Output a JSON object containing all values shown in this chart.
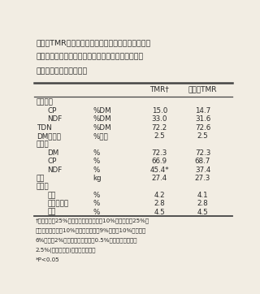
{
  "title_line1": "表３　TMR中のイネ科乾草を梢頭部サイレージで置",
  "title_line2": "き換えた場合の化学組成、エネルギー価、乾物摂取",
  "title_line3": "量、消化率および乳生産",
  "col3": "TMR†",
  "col4": "梢頭部TMR",
  "sections": [
    {
      "label": "化学組成",
      "indent": false,
      "unit": "",
      "tmr": "",
      "shoto": ""
    },
    {
      "label": "CP",
      "indent": true,
      "unit": "%DM",
      "tmr": "15.0",
      "shoto": "14.7"
    },
    {
      "label": "NDF",
      "indent": true,
      "unit": "%DM",
      "tmr": "33.0",
      "shoto": "31.6"
    },
    {
      "label": "TDN",
      "indent": false,
      "unit": "%DM",
      "tmr": "72.2",
      "shoto": "72.6"
    },
    {
      "label": "DM摂取量",
      "indent": false,
      "unit": "%体重",
      "tmr": "2.5",
      "shoto": "2.5"
    },
    {
      "label": "消化率",
      "indent": false,
      "unit": "",
      "tmr": "",
      "shoto": ""
    },
    {
      "label": "DM",
      "indent": true,
      "unit": "%",
      "tmr": "72.3",
      "shoto": "72.3"
    },
    {
      "label": "CP",
      "indent": true,
      "unit": "%",
      "tmr": "66.9",
      "shoto": "68.7"
    },
    {
      "label": "NDF",
      "indent": true,
      "unit": "%",
      "tmr": "45.4*",
      "shoto": "37.4"
    },
    {
      "label": "乳量",
      "indent": false,
      "unit": "kg",
      "tmr": "27.4",
      "shoto": "27.3"
    },
    {
      "label": "乳成分",
      "indent": false,
      "unit": "",
      "tmr": "",
      "shoto": ""
    },
    {
      "label": "脂質",
      "indent": true,
      "unit": "%",
      "tmr": "4.2",
      "shoto": "4.1"
    },
    {
      "label": "タンパク質",
      "indent": true,
      "unit": "%",
      "tmr": "2.8",
      "shoto": "2.8"
    },
    {
      "label": "乳糖",
      "indent": true,
      "unit": "%",
      "tmr": "4.5",
      "shoto": "4.5"
    }
  ],
  "footnotes": [
    "†イネ科乾草25%、アルファルファ乾草10%、配合飼料25%、",
    "圧扁トウモロコシ10%、ビートパルプ9%、大麦10%、大豆粕",
    "6%、綿実2%、脂肪酸カルシウム0.5%およびミネラル類",
    "2.5%(乾物ベース)より構成される",
    "*P<0.05"
  ],
  "bg_color": "#f2ede3",
  "text_color": "#2a2a2a",
  "line_color": "#444444"
}
